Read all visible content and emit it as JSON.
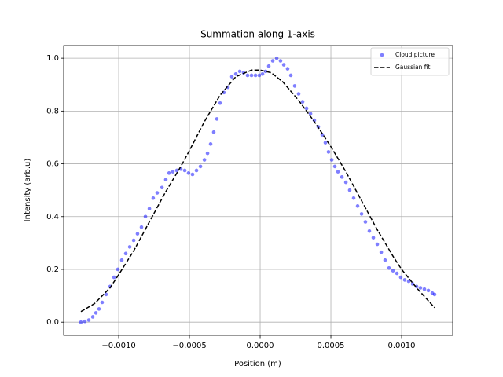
{
  "chart_data": {
    "type": "scatter",
    "title": "Summation along 1-axis",
    "x_label": "Position (m)",
    "y_label": "Intensity (arb.u)",
    "xlim": [
      -0.001389,
      0.001361
    ],
    "ylim": [
      -0.05,
      1.048
    ],
    "xticks": [
      {
        "value": -0.001,
        "label": "−0.0010"
      },
      {
        "value": -0.0005,
        "label": "−0.0005"
      },
      {
        "value": 0,
        "label": "0.0000"
      },
      {
        "value": 0.0005,
        "label": "0.0005"
      },
      {
        "value": 0.001,
        "label": "0.0010"
      }
    ],
    "yticks": [
      {
        "value": 0,
        "label": "0.0"
      },
      {
        "value": 0.2,
        "label": "0.2"
      },
      {
        "value": 0.4,
        "label": "0.4"
      },
      {
        "value": 0.6,
        "label": "0.6"
      },
      {
        "value": 0.8,
        "label": "0.8"
      },
      {
        "value": 1,
        "label": "1.0"
      }
    ],
    "grid": true,
    "legend": "upper right",
    "series": [
      {
        "name": "Cloud picture",
        "type": "scatter",
        "color": "#0000ff",
        "alpha": 0.5,
        "x": [
          -0.001267,
          -0.001239,
          -0.001211,
          -0.001183,
          -0.001161,
          -0.001139,
          -0.001117,
          -0.001089,
          -0.001061,
          -0.001033,
          -0.001006,
          -0.000978,
          -0.00095,
          -0.000922,
          -0.000894,
          -0.000867,
          -0.000839,
          -0.000811,
          -0.000783,
          -0.000756,
          -0.000728,
          -0.000694,
          -0.000667,
          -0.000644,
          -0.000617,
          -0.000589,
          -0.000561,
          -0.000533,
          -0.000506,
          -0.000478,
          -0.00045,
          -0.000422,
          -0.000394,
          -0.000372,
          -0.00035,
          -0.000328,
          -0.000306,
          -0.000283,
          -0.000256,
          -0.000228,
          -0.0002,
          -0.000172,
          -0.000144,
          -0.000117,
          -8.9e-05,
          -6.1e-05,
          -3.3e-05,
          -6e-06,
          1.7e-05,
          3.9e-05,
          6.1e-05,
          8.9e-05,
          0.000117,
          0.000144,
          0.000167,
          0.000194,
          0.000217,
          0.000244,
          0.000272,
          0.0003,
          0.000328,
          0.000356,
          0.000383,
          0.000411,
          0.000439,
          0.000461,
          0.000483,
          0.000506,
          0.000528,
          0.00055,
          0.000578,
          0.000606,
          0.000633,
          0.000661,
          0.000689,
          0.000717,
          0.000744,
          0.000772,
          0.0008,
          0.000828,
          0.000856,
          0.000883,
          0.000911,
          0.000939,
          0.000967,
          0.000994,
          0.001022,
          0.00105,
          0.001078,
          0.001106,
          0.001133,
          0.001161,
          0.001189,
          0.001217,
          0.001233
        ],
        "values": [
          0.0,
          0.003,
          0.008,
          0.02,
          0.035,
          0.05,
          0.075,
          0.105,
          0.135,
          0.17,
          0.2,
          0.235,
          0.26,
          0.285,
          0.31,
          0.335,
          0.36,
          0.4,
          0.43,
          0.47,
          0.49,
          0.51,
          0.54,
          0.565,
          0.57,
          0.575,
          0.58,
          0.575,
          0.565,
          0.56,
          0.575,
          0.59,
          0.615,
          0.64,
          0.675,
          0.72,
          0.77,
          0.83,
          0.87,
          0.89,
          0.93,
          0.94,
          0.95,
          0.945,
          0.935,
          0.935,
          0.935,
          0.935,
          0.94,
          0.95,
          0.97,
          0.99,
          1.0,
          0.99,
          0.975,
          0.96,
          0.935,
          0.895,
          0.865,
          0.835,
          0.81,
          0.79,
          0.765,
          0.74,
          0.71,
          0.68,
          0.645,
          0.615,
          0.59,
          0.57,
          0.55,
          0.53,
          0.5,
          0.47,
          0.44,
          0.41,
          0.38,
          0.345,
          0.32,
          0.295,
          0.265,
          0.235,
          0.205,
          0.195,
          0.185,
          0.17,
          0.16,
          0.155,
          0.145,
          0.135,
          0.13,
          0.125,
          0.12,
          0.11,
          0.105
        ]
      },
      {
        "name": "Gaussian fit",
        "type": "line",
        "color": "#000000",
        "dashed": true,
        "x": [
          -0.001267,
          -0.001172,
          -0.001061,
          -0.001,
          -0.000894,
          -0.000783,
          -0.000672,
          -0.000561,
          -0.0005,
          -0.000394,
          -0.000283,
          -0.000172,
          -6.1e-05,
          0,
          7.8e-05,
          0.000161,
          0.000272,
          0.000383,
          0.0005,
          0.000606,
          0.000717,
          0.000828,
          0.000939,
          0.001,
          0.001106,
          0.001233
        ],
        "values": [
          0.04,
          0.07,
          0.13,
          0.18,
          0.27,
          0.38,
          0.49,
          0.59,
          0.65,
          0.76,
          0.86,
          0.93,
          0.955,
          0.955,
          0.945,
          0.91,
          0.84,
          0.76,
          0.665,
          0.57,
          0.46,
          0.35,
          0.25,
          0.2,
          0.13,
          0.055
        ]
      }
    ]
  }
}
